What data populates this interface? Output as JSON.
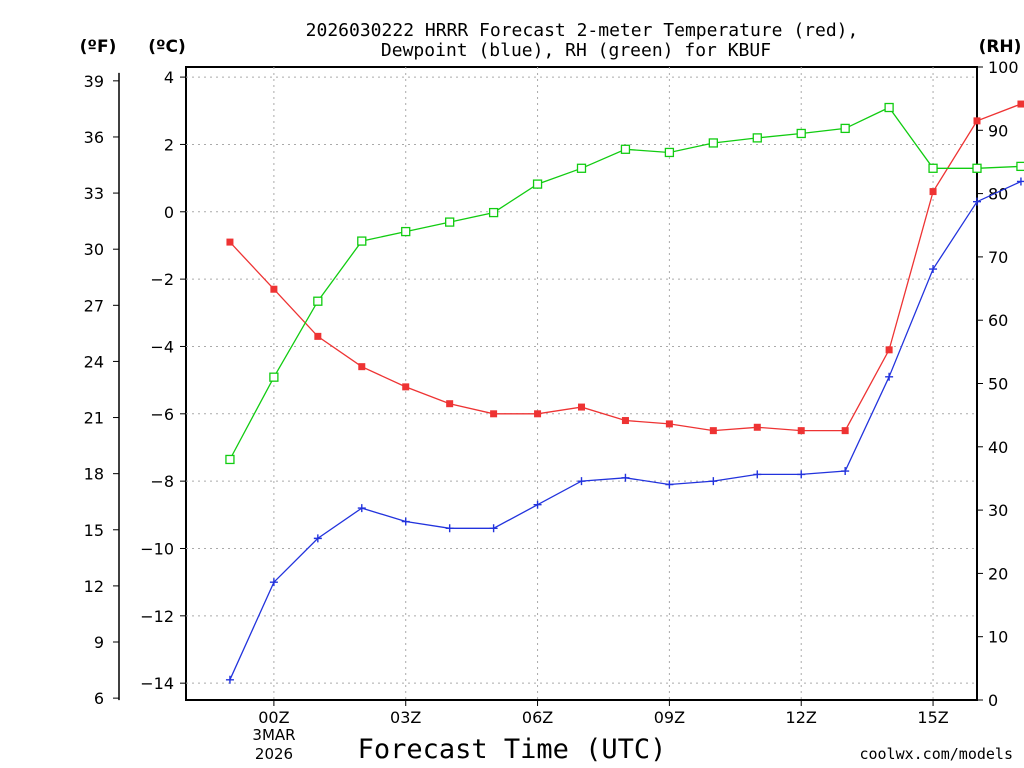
{
  "chart_data": {
    "type": "line",
    "title_line1": "2026030222 HRRR Forecast 2-meter Temperature (red),",
    "title_line2": "Dewpoint (blue), RH (green) for KBUF",
    "xlabel": "Forecast Time (UTC)",
    "watermark": "coolwx.com/models",
    "units": {
      "fahrenheit": "(ºF)",
      "celsius": "(ºC)",
      "rh": "(RH)"
    },
    "x_ticks": [
      "00Z",
      "03Z",
      "06Z",
      "09Z",
      "12Z",
      "15Z"
    ],
    "x_tick_positions": [
      1,
      4,
      7,
      10,
      13,
      16
    ],
    "date_labels": [
      "3MAR",
      "2026"
    ],
    "x_range": [
      -1,
      17
    ],
    "celsius_ticks": [
      4,
      2,
      0,
      -2,
      -4,
      -6,
      -8,
      -10,
      -12,
      -14
    ],
    "fahrenheit_ticks": [
      39,
      36,
      33,
      30,
      27,
      24,
      21,
      18,
      15,
      12,
      9,
      6
    ],
    "rh_ticks": [
      100,
      90,
      80,
      70,
      60,
      50,
      40,
      30,
      20,
      10,
      0
    ],
    "ylim_celsius": [
      -14.5,
      4.3
    ],
    "ylim_rh": [
      0,
      100
    ],
    "colors": {
      "temperature": "#ee3333",
      "dewpoint": "#2233dd",
      "rh": "#11cc11",
      "grid": "#aaaaaa",
      "watermark": "#dd2222"
    },
    "series": [
      {
        "name": "Temperature",
        "unit": "C",
        "color": "#ee3333",
        "marker": "filled-square",
        "values": [
          -0.9,
          -2.3,
          -3.7,
          -4.6,
          -5.2,
          -5.7,
          -6.0,
          -6.0,
          -5.8,
          -6.2,
          -6.3,
          -6.5,
          -6.4,
          -6.5,
          -6.5,
          -4.1,
          0.6,
          2.7,
          3.2
        ]
      },
      {
        "name": "Dewpoint",
        "unit": "C",
        "color": "#2233dd",
        "marker": "plus",
        "values": [
          -13.9,
          -11.0,
          -9.7,
          -8.8,
          -9.2,
          -9.4,
          -9.4,
          -8.7,
          -8.0,
          -7.9,
          -8.1,
          -8.0,
          -7.8,
          -7.8,
          -7.7,
          -4.9,
          -1.7,
          0.3,
          0.9
        ]
      },
      {
        "name": "RH",
        "unit": "%",
        "color": "#11cc11",
        "marker": "open-square",
        "values": [
          38,
          51,
          63,
          72.5,
          74,
          75.5,
          77,
          81.5,
          84,
          87,
          86.5,
          88,
          88.8,
          89.5,
          90.3,
          93.6,
          84,
          84,
          84.3
        ]
      }
    ]
  }
}
